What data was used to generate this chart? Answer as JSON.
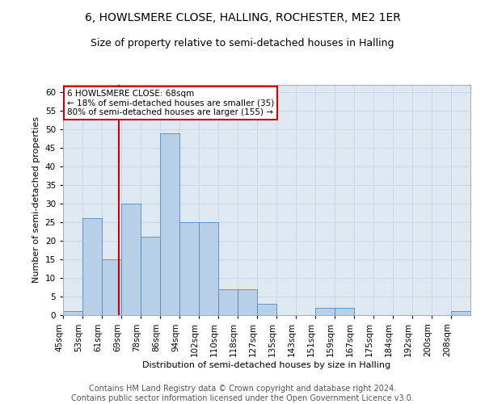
{
  "title": "6, HOWLSMERE CLOSE, HALLING, ROCHESTER, ME2 1ER",
  "subtitle": "Size of property relative to semi-detached houses in Halling",
  "xlabel": "Distribution of semi-detached houses by size in Halling",
  "ylabel": "Number of semi-detached properties",
  "bin_labels": [
    "45sqm",
    "53sqm",
    "61sqm",
    "69sqm",
    "78sqm",
    "86sqm",
    "94sqm",
    "102sqm",
    "110sqm",
    "118sqm",
    "127sqm",
    "135sqm",
    "143sqm",
    "151sqm",
    "159sqm",
    "167sqm",
    "175sqm",
    "184sqm",
    "192sqm",
    "200sqm",
    "208sqm"
  ],
  "bar_heights": [
    1,
    26,
    15,
    30,
    21,
    49,
    25,
    25,
    7,
    7,
    3,
    0,
    0,
    2,
    2,
    0,
    0,
    0,
    0,
    0,
    1
  ],
  "bar_color": "#b8cfe8",
  "bar_edge_color": "#5588bb",
  "subject_line_color": "#cc0000",
  "annotation_box_color": "#cc0000",
  "ylim": [
    0,
    62
  ],
  "yticks": [
    0,
    5,
    10,
    15,
    20,
    25,
    30,
    35,
    40,
    45,
    50,
    55,
    60
  ],
  "footer_text": "Contains HM Land Registry data © Crown copyright and database right 2024.\nContains public sector information licensed under the Open Government Licence v3.0.",
  "title_fontsize": 10,
  "subtitle_fontsize": 9,
  "label_fontsize": 8,
  "tick_fontsize": 7.5,
  "annotation_fontsize": 7.5,
  "footer_fontsize": 7,
  "grid_color": "#c8d8e8",
  "bg_color": "#dde8f0"
}
